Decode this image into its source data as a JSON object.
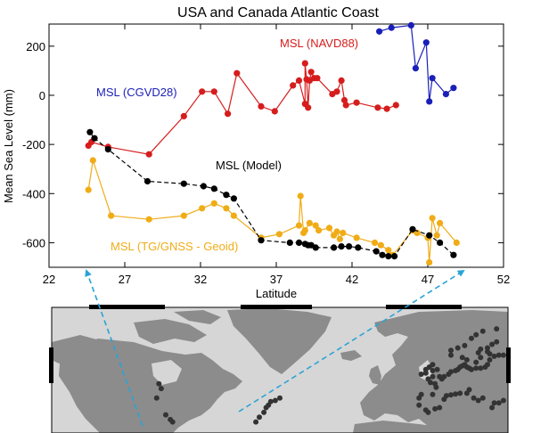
{
  "colors": {
    "navd88": "#d61d1d",
    "cgvd28": "#1a1fb8",
    "model": "#000000",
    "tg": "#f0ac17",
    "arrow": "#29a3d6",
    "map_water": "#d6d6d6",
    "map_land": "#8c8c8c"
  },
  "chart_data": {
    "type": "scatter",
    "title": "USA and Canada Atlantic Coast",
    "xlabel": "Latitude",
    "ylabel": "Mean Sea Level (mm)",
    "xlim": [
      22,
      52
    ],
    "ylim": [
      -700,
      290
    ],
    "xticks": [
      22,
      27,
      32,
      37,
      42,
      47,
      52
    ],
    "yticks": [
      200,
      0,
      -200,
      -400,
      -600
    ],
    "series": [
      {
        "name": "MSL (NAVD88)",
        "line": "solid",
        "x": [
          24.6,
          24.8,
          25.9,
          28.6,
          30.9,
          32.1,
          32.9,
          33.8,
          34.4,
          36.0,
          36.9,
          38.1,
          38.5,
          38.9,
          38.9,
          39.0,
          39.1,
          39.2,
          39.3,
          39.5,
          39.7,
          40.7,
          41.0,
          41.3,
          41.5,
          41.6,
          42.3,
          43.7,
          44.3,
          44.9
        ],
        "y": [
          -205,
          -190,
          -210,
          -240,
          -85,
          15,
          15,
          -75,
          90,
          -45,
          -65,
          40,
          60,
          -35,
          130,
          65,
          -50,
          60,
          95,
          70,
          70,
          5,
          15,
          60,
          -20,
          -40,
          -30,
          -50,
          -55,
          -40
        ]
      },
      {
        "name": "MSL (CGVD28)",
        "line": "solid",
        "x": [
          43.8,
          44.6,
          45.9,
          46.2,
          46.9,
          47.1,
          47.3,
          48.2,
          48.7
        ],
        "y": [
          260,
          275,
          285,
          110,
          215,
          -25,
          70,
          5,
          30
        ]
      },
      {
        "name": "MSL (Model)",
        "line": "dashed",
        "x": [
          24.7,
          25.0,
          25.9,
          28.5,
          30.9,
          32.2,
          32.9,
          33.7,
          34.2,
          36.0,
          37.9,
          38.5,
          38.9,
          39.1,
          39.3,
          39.6,
          40.8,
          41.3,
          41.8,
          42.4,
          43.6,
          44.0,
          44.4,
          44.8,
          46.0,
          47.1,
          47.8,
          48.7
        ],
        "y": [
          -150,
          -175,
          -220,
          -350,
          -360,
          -370,
          -380,
          -405,
          -420,
          -590,
          -600,
          -600,
          -605,
          -610,
          -610,
          -620,
          -620,
          -615,
          -615,
          -620,
          -635,
          -650,
          -655,
          -655,
          -545,
          -570,
          -600,
          -650
        ]
      },
      {
        "name": "MSL (TG/GNSS - Geoid)",
        "line": "solid",
        "x": [
          24.6,
          24.9,
          26.1,
          28.6,
          30.9,
          32.1,
          32.9,
          33.7,
          34.2,
          36.0,
          37.2,
          38.5,
          38.6,
          38.8,
          38.9,
          39.2,
          39.6,
          39.8,
          40.5,
          40.8,
          41.0,
          41.2,
          41.4,
          42.3,
          43.5,
          43.9,
          44.4,
          44.7,
          46.0,
          46.3,
          47.0,
          47.1,
          47.3,
          47.6,
          47.8,
          48.9
        ],
        "y": [
          -385,
          -265,
          -490,
          -505,
          -490,
          -460,
          -440,
          -460,
          -490,
          -580,
          -565,
          -530,
          -410,
          -560,
          -550,
          -520,
          -530,
          -550,
          -540,
          -570,
          -555,
          -585,
          -560,
          -580,
          -600,
          -610,
          -630,
          -650,
          -550,
          -560,
          -580,
          -680,
          -500,
          -570,
          -520,
          -600
        ]
      }
    ],
    "annotations": [
      {
        "text": "MSL (CGVD28)",
        "series": 1
      },
      {
        "text": "MSL (NAVD88)",
        "series": 0
      },
      {
        "text": "MSL (Model)",
        "series": 2
      },
      {
        "text": "MSL (TG/GNSS - Geoid)",
        "series": 3
      }
    ],
    "map_stations": [
      [
        -123,
        48
      ],
      [
        -122,
        46
      ],
      [
        -124,
        42
      ],
      [
        -120,
        35
      ],
      [
        -118,
        33
      ],
      [
        -117,
        32
      ],
      [
        -80,
        25
      ],
      [
        -81,
        26
      ],
      [
        -82,
        28
      ],
      [
        -80,
        27
      ],
      [
        -80.5,
        32
      ],
      [
        -79,
        34
      ],
      [
        -77,
        36
      ],
      [
        -76,
        38
      ],
      [
        -75,
        39
      ],
      [
        -74,
        40.5
      ],
      [
        -72,
        41
      ],
      [
        -70,
        42
      ],
      [
        -5,
        36
      ],
      [
        -6,
        37
      ],
      [
        -2,
        37.5
      ],
      [
        0,
        38
      ],
      [
        2,
        41.5
      ],
      [
        3,
        43
      ],
      [
        5,
        43.3
      ],
      [
        7,
        43.7
      ],
      [
        9,
        44
      ],
      [
        12,
        44
      ],
      [
        13,
        45.5
      ],
      [
        15,
        42
      ],
      [
        17,
        41
      ],
      [
        19,
        42
      ],
      [
        23,
        38
      ],
      [
        24,
        40
      ],
      [
        26,
        40
      ],
      [
        28,
        41
      ],
      [
        -9,
        39
      ],
      [
        -9,
        42
      ],
      [
        -8,
        43.5
      ],
      [
        -3,
        43.5
      ],
      [
        -1.5,
        46.5
      ],
      [
        -2,
        48
      ],
      [
        -4,
        48.5
      ],
      [
        1,
        50
      ],
      [
        2,
        51
      ],
      [
        4,
        52
      ],
      [
        5,
        53
      ],
      [
        7,
        53.5
      ],
      [
        8,
        54
      ],
      [
        9,
        55
      ],
      [
        10,
        55.5
      ],
      [
        11,
        56
      ],
      [
        12,
        55
      ],
      [
        13,
        54.5
      ],
      [
        14,
        54
      ],
      [
        16,
        54.5
      ],
      [
        18,
        54.5
      ],
      [
        20,
        55
      ],
      [
        21,
        56
      ],
      [
        22,
        58
      ],
      [
        24,
        59.5
      ],
      [
        26,
        60
      ],
      [
        28,
        60
      ],
      [
        22,
        60.5
      ],
      [
        21,
        61.5
      ],
      [
        21,
        63
      ],
      [
        23,
        64.5
      ],
      [
        25,
        65.5
      ],
      [
        18,
        62.5
      ],
      [
        17,
        61
      ],
      [
        18,
        59
      ],
      [
        16,
        57
      ],
      [
        12,
        58
      ],
      [
        10,
        59
      ],
      [
        5,
        60
      ],
      [
        5,
        62
      ],
      [
        8,
        63
      ],
      [
        11,
        64
      ],
      [
        14,
        67
      ],
      [
        16,
        68.5
      ],
      [
        19,
        70
      ],
      [
        25,
        71
      ],
      [
        -3,
        51
      ],
      [
        -3,
        53.5
      ],
      [
        -4.5,
        55
      ],
      [
        -3,
        56
      ],
      [
        -6,
        54
      ],
      [
        -8,
        52
      ],
      [
        -6,
        52.5
      ],
      [
        -1,
        54
      ],
      [
        0,
        51
      ],
      [
        -5,
        50
      ]
    ]
  }
}
